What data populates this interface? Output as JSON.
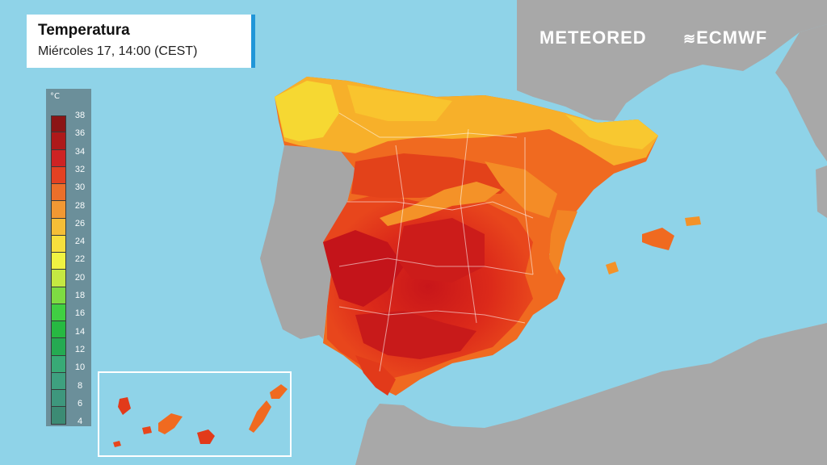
{
  "title": {
    "heading": "Temperatura",
    "subtitle": "Miércoles 17, 14:00 (CEST)"
  },
  "legend": {
    "unit": "°C",
    "labels": [
      "38",
      "36",
      "34",
      "32",
      "30",
      "28",
      "26",
      "24",
      "22",
      "20",
      "18",
      "16",
      "14",
      "12",
      "10",
      "8",
      "6",
      "4"
    ],
    "colors": [
      "#8b0a0a",
      "#b01010",
      "#d21a1a",
      "#e83a18",
      "#f06a20",
      "#f7952a",
      "#fbbd2e",
      "#fde034",
      "#f6f53a",
      "#c8ea3a",
      "#7edc3a",
      "#3ccf3a",
      "#22b83a",
      "#20a84a",
      "#34a870",
      "#3a9e7a",
      "#3a9478",
      "#38886e"
    ]
  },
  "logos": {
    "meteored": "METEORED",
    "ecmwf": "ECMWF"
  },
  "colors": {
    "sea": "#8fd3e8",
    "land": "#a9a9a9",
    "accent": "#2196d8"
  }
}
